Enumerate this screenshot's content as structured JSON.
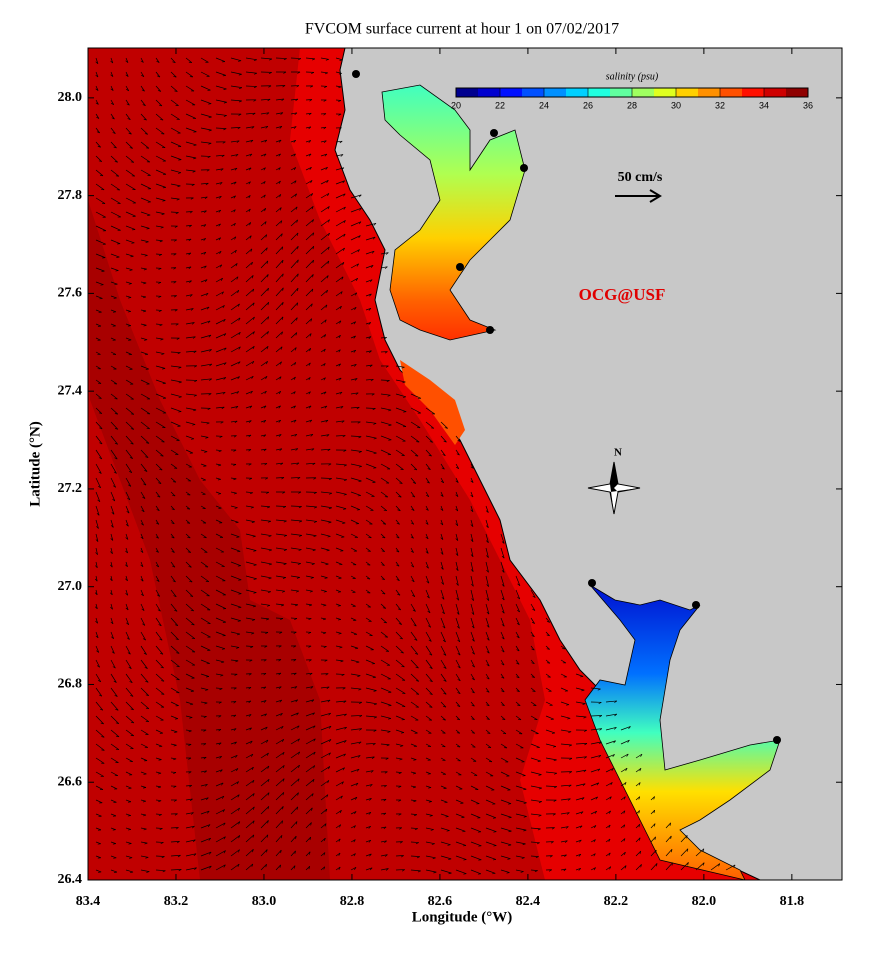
{
  "title": "FVCOM surface current at hour 1 on 07/02/2017",
  "map": {
    "x_label": "Longitude (°W)",
    "y_label": "Latitude (°N)",
    "xlim": [
      83.4,
      81.686
    ],
    "ylim": [
      26.4,
      28.102
    ],
    "xticks": [
      83.4,
      83.2,
      {
        "value": 83.0,
        "label": "83.0"
      },
      82.8,
      82.6,
      82.4,
      82.2,
      {
        "value": 82.0,
        "label": "82.0"
      },
      81.8
    ],
    "yticks": [
      26.4,
      26.6,
      26.8,
      {
        "value": 27.0,
        "label": "27.0"
      },
      27.2,
      27.4,
      27.6,
      27.8,
      {
        "value": 28.0,
        "label": "28.0"
      }
    ]
  },
  "colorbar": {
    "label": "salinity (psu)",
    "lim": [
      20,
      36
    ],
    "ticks": [
      20,
      22,
      24,
      26,
      28,
      30,
      32,
      34,
      36
    ],
    "colors": [
      "#00008f",
      "#0000cf",
      "#0010ff",
      "#0050ff",
      "#0090ff",
      "#00d0ff",
      "#20ffdf",
      "#60ff9f",
      "#9fff60",
      "#dfff20",
      "#ffd000",
      "#ff9000",
      "#ff5000",
      "#ff1000",
      "#cf0000",
      "#8f0000"
    ]
  },
  "scale_label": "50 cm/s",
  "credit": "OCG@USF",
  "compass_label": "N"
}
